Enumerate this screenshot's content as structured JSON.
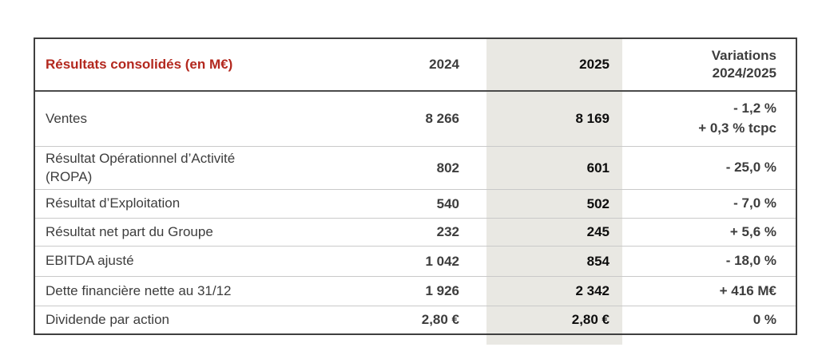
{
  "table": {
    "header": {
      "title": "Résultats consolidés (en M€)",
      "col_2024": "2024",
      "col_2025": "2025",
      "col_variations": "Variations\n2024/2025"
    },
    "rows": [
      {
        "label": "Ventes",
        "y2024": "8 266",
        "y2025": "8 169",
        "variation_lines": [
          "- 1,2 %",
          "+ 0,3 % tcpc"
        ]
      },
      {
        "label": "Résultat Opérationnel d’Activité\n(ROPA)",
        "y2024": "802",
        "y2025": "601",
        "variation_lines": [
          "- 25,0 %"
        ]
      },
      {
        "label": "Résultat d’Exploitation",
        "y2024": "540",
        "y2025": "502",
        "variation_lines": [
          "- 7,0 %"
        ]
      },
      {
        "label": "Résultat net part du Groupe",
        "y2024": "232",
        "y2025": "245",
        "variation_lines": [
          "+ 5,6 %"
        ]
      },
      {
        "label": "EBITDA ajusté",
        "y2024": "1 042",
        "y2025": "854",
        "variation_lines": [
          "- 18,0 %"
        ]
      },
      {
        "label": "Dette financière nette au 31/12",
        "y2024": "1 926",
        "y2025": "2 342",
        "variation_lines": [
          "+ 416 M€"
        ]
      },
      {
        "label": "Dividende par action",
        "y2024": "2,80 €",
        "y2025": "2,80 €",
        "variation_lines": [
          "0 %"
        ]
      }
    ],
    "colors": {
      "title_red": "#b3281e",
      "text_dark_gray": "#3d3d3d",
      "highlight_column_bg": "#e9e8e3",
      "outer_border": "#3f3f3f",
      "row_separator": "#c9c9c9"
    }
  }
}
